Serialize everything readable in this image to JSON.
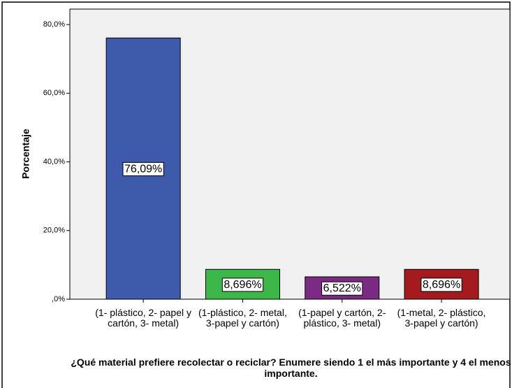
{
  "chart_data": {
    "type": "bar",
    "categories": [
      "(1- plástico, 2- papel y cartón, 3- metal)",
      "(1-plástico, 2- metal, 3-papel y cartón)",
      "(1-papel y cartón, 2-plástico, 3- metal)",
      "(1-metal, 2- plástico, 3-papel y cartón)"
    ],
    "values": [
      76.09,
      8.696,
      6.522,
      8.696
    ],
    "value_labels": [
      "76,09%",
      "8,696%",
      "6,522%",
      "8,696%"
    ],
    "colors": [
      "#3f5aad",
      "#3db64a",
      "#7b2b84",
      "#a31a1f"
    ],
    "ylabel": "Porcentaje",
    "xlabel": "¿Qué material prefiere recolectar o reciclar? Enumere siendo 1 el más importante y 4 el menos importante.",
    "ylim": [
      0,
      84.5
    ],
    "yticks": [
      {
        "value": 0,
        "label": ",0%"
      },
      {
        "value": 20,
        "label": "20,0%"
      },
      {
        "value": 40,
        "label": "40,0%"
      },
      {
        "value": 60,
        "label": "60,0%"
      },
      {
        "value": 80,
        "label": "80,0%"
      }
    ]
  }
}
